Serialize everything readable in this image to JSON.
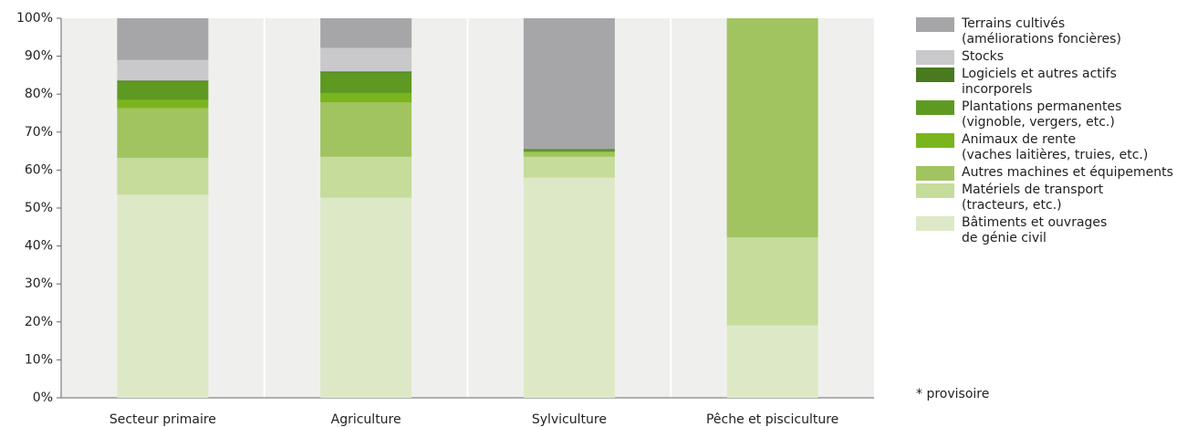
{
  "chart_data": {
    "type": "stacked_bar",
    "categories": [
      "Secteur primaire",
      "Agriculture",
      "Sylviculture",
      "Pêche et pisciculture"
    ],
    "series": [
      {
        "name": "Bâtiments et ouvrages\nde génie civil",
        "color": "#dde9c6",
        "values": [
          53.5,
          52.7,
          58.0,
          19.1
        ]
      },
      {
        "name": "Matériels de transport\n(tracteurs, etc.)",
        "color": "#c5dc9b",
        "values": [
          9.7,
          10.8,
          5.5,
          23.2
        ]
      },
      {
        "name": "Autres machines et équipements",
        "color": "#a1c460",
        "values": [
          13.1,
          14.3,
          1.2,
          57.7
        ]
      },
      {
        "name": "Animaux de rente\n(vaches laitières, truies, etc.)",
        "color": "#7ab51d",
        "values": [
          2.2,
          2.5,
          0.2,
          0
        ]
      },
      {
        "name": "Plantations permanentes\n(vignoble, vergers, etc.)",
        "color": "#5e9a22",
        "values": [
          4.8,
          5.4,
          0.3,
          0
        ]
      },
      {
        "name": "Logiciels et autres actifs\nincorporels",
        "color": "#4a7a1f",
        "values": [
          0.3,
          0.3,
          0.3,
          0
        ]
      },
      {
        "name": "Stocks",
        "color": "#c9c9cb",
        "values": [
          5.4,
          6.2,
          0,
          0
        ]
      },
      {
        "name": "Terrains cultivés\n(améliorations foncières)",
        "color": "#a6a6a8",
        "values": [
          11.0,
          7.8,
          34.5,
          0
        ]
      }
    ],
    "ylim": [
      0,
      100
    ],
    "yticks": [
      {
        "value": 0,
        "label": "0%"
      },
      {
        "value": 10,
        "label": "10%"
      },
      {
        "value": 20,
        "label": "20%"
      },
      {
        "value": 30,
        "label": "30%"
      },
      {
        "value": 40,
        "label": "40%"
      },
      {
        "value": 50,
        "label": "50%"
      },
      {
        "value": 60,
        "label": "60%"
      },
      {
        "value": 70,
        "label": "70%"
      },
      {
        "value": 80,
        "label": "80%"
      },
      {
        "value": 90,
        "label": "90%"
      },
      {
        "value": 100,
        "label": "100%"
      }
    ],
    "legend_position": "right",
    "note": "* provisoire"
  }
}
